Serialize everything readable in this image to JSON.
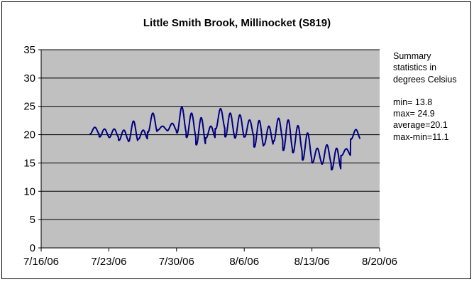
{
  "chart_data": {
    "type": "line",
    "title": "Little Smith Brook, Millinocket (S819)",
    "xlabel": "",
    "ylabel": "",
    "x_ticks": [
      "7/16/06",
      "7/23/06",
      "7/30/06",
      "8/6/06",
      "8/13/06",
      "8/20/06"
    ],
    "xlim": [
      "7/16/06",
      "8/20/06"
    ],
    "ylim": [
      0,
      35
    ],
    "y_ticks": [
      0,
      5,
      10,
      15,
      20,
      25,
      30,
      35
    ],
    "grid": "horizontal",
    "plot_background": "#c0c0c0",
    "line_color": "#000080",
    "series": [
      {
        "x": [
          "7/21/06",
          "7/22/06",
          "7/23/06",
          "7/24/06",
          "7/25/06",
          "7/26/06",
          "7/27/06",
          "7/28/06",
          "7/29/06",
          "7/30/06",
          "7/31/06",
          "8/1/06",
          "8/2/06",
          "8/3/06",
          "8/4/06",
          "8/5/06",
          "8/6/06",
          "8/7/06",
          "8/8/06",
          "8/9/06",
          "8/10/06",
          "8/11/06",
          "8/12/06",
          "8/13/06",
          "8/14/06",
          "8/15/06",
          "8/16/06",
          "8/17/06"
        ],
        "max": [
          21.3,
          21.0,
          21.0,
          20.8,
          22.4,
          20.8,
          23.8,
          21.5,
          22.0,
          24.9,
          23.8,
          23.0,
          21.5,
          24.6,
          23.8,
          23.5,
          22.6,
          22.5,
          21.5,
          22.9,
          22.6,
          21.6,
          20.3,
          17.6,
          18.2,
          17.6,
          17.5,
          20.9
        ],
        "min": [
          20.1,
          19.6,
          19.5,
          19.0,
          18.8,
          19.2,
          20.4,
          20.8,
          20.7,
          20.3,
          19.5,
          18.2,
          19.4,
          21.0,
          19.6,
          19.4,
          19.6,
          17.8,
          18.2,
          18.8,
          17.2,
          16.8,
          15.5,
          15.0,
          14.8,
          13.8,
          16.3,
          19.2
        ]
      }
    ],
    "summary": {
      "heading": [
        "Summary",
        "statistics in",
        "degrees Celsius"
      ],
      "min": "min= 13.8",
      "max": "max= 24.9",
      "average": "average=20.1",
      "range": "max-min=11.1"
    }
  }
}
